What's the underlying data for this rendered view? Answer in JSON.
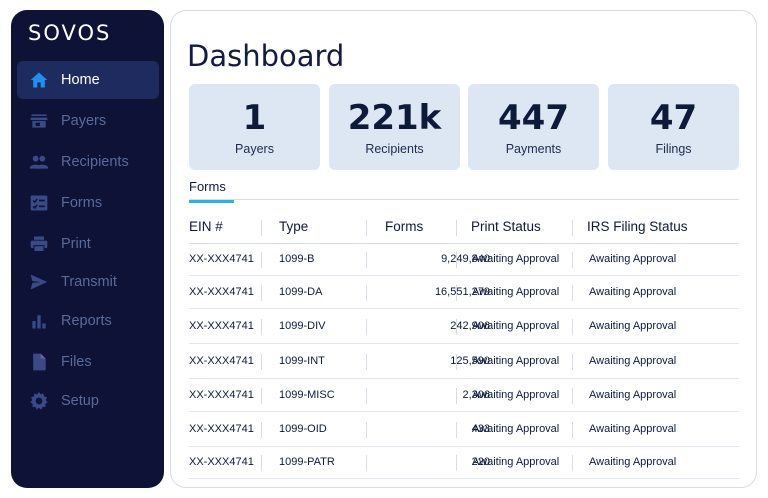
{
  "brand": {
    "logo": "SOVOS"
  },
  "sidebar": {
    "items": [
      {
        "label": "Home",
        "icon": "home-icon",
        "active": true
      },
      {
        "label": "Payers",
        "icon": "store-icon",
        "active": false
      },
      {
        "label": "Recipients",
        "icon": "people-icon",
        "active": false
      },
      {
        "label": "Forms",
        "icon": "checklist-icon",
        "active": false
      },
      {
        "label": "Print",
        "icon": "printer-icon",
        "active": false
      },
      {
        "label": "Transmit",
        "icon": "send-icon",
        "active": false
      },
      {
        "label": "Reports",
        "icon": "bar-chart-icon",
        "active": false
      },
      {
        "label": "Files",
        "icon": "file-icon",
        "active": false
      },
      {
        "label": "Setup",
        "icon": "gear-icon",
        "active": false
      }
    ]
  },
  "main": {
    "title": "Dashboard",
    "stats": [
      {
        "value": "1",
        "label": "Payers"
      },
      {
        "value": "221k",
        "label": "Recipients"
      },
      {
        "value": "447",
        "label": "Payments"
      },
      {
        "value": "47",
        "label": "Filings"
      }
    ],
    "tab": "Forms",
    "table": {
      "headers": [
        "EIN #",
        "Type",
        "Forms",
        "Print Status",
        "IRS Filing Status"
      ],
      "rows": [
        [
          "XX-XXX4741",
          "1099-B",
          "9,249,840",
          "Awaiting Approval",
          "Awaiting Approval"
        ],
        [
          "XX-XXX4741",
          "1099-DA",
          "16,551,279",
          "Awaiting Approval",
          "Awaiting Approval"
        ],
        [
          "XX-XXX4741",
          "1099-DIV",
          "242,906",
          "Awaiting Approval",
          "Awaiting Approval"
        ],
        [
          "XX-XXX4741",
          "1099-INT",
          "125,590",
          "Awaiting Approval",
          "Awaiting Approval"
        ],
        [
          "XX-XXX4741",
          "1099-MISC",
          "2,306",
          "Awaiting Approval",
          "Awaiting Approval"
        ],
        [
          "XX-XXX4741",
          "1099-OID",
          "433",
          "Awaiting Approval",
          "Awaiting Approval"
        ],
        [
          "XX-XXX4741",
          "1099-PATR",
          "220",
          "Awaiting Approval",
          "Awaiting Approval"
        ]
      ]
    }
  },
  "colors": {
    "sidebar_bg": "#0d1236",
    "sidebar_active": "#1d2b5e",
    "accent_blue": "#1f8ff0",
    "tab_underline": "#22b6e8",
    "stat_card_bg": "#dde7f3",
    "inactive_text": "#5b6a9a"
  }
}
